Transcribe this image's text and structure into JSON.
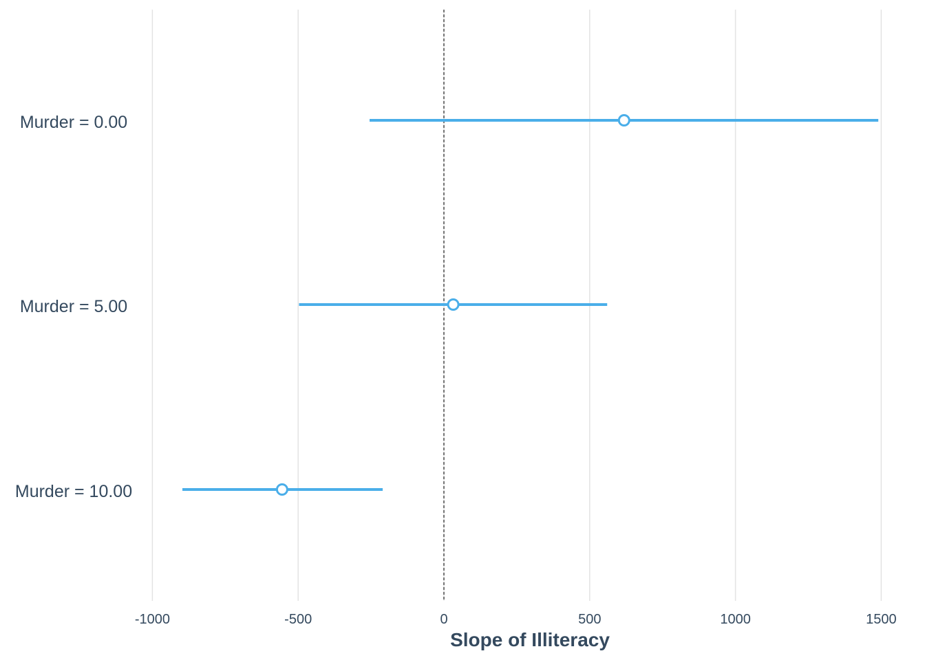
{
  "chart_data": {
    "type": "scatter",
    "xlabel": "Slope of Illiteracy",
    "ylabel": "",
    "xlim": [
      -1050,
      1510
    ],
    "xticks": [
      -1000,
      -500,
      0,
      500,
      1000,
      1500
    ],
    "xtick_labels": [
      "-1000",
      "-500",
      "0",
      "500",
      "1000",
      "1500"
    ],
    "grid": "vertical",
    "reference_line": {
      "x": 0,
      "style": "dashed"
    },
    "categories": [
      "Murder = 0.00",
      "Murder = 5.00",
      "Murder = 10.00"
    ],
    "estimates": [
      618,
      32,
      -555
    ],
    "ci_low": [
      -255,
      -497,
      -897
    ],
    "ci_high": [
      1490,
      560,
      -210
    ],
    "colors": {
      "series": "#4aaee9",
      "grid": "#e3e3e3",
      "text": "#34495e",
      "reference": "#222222"
    }
  }
}
